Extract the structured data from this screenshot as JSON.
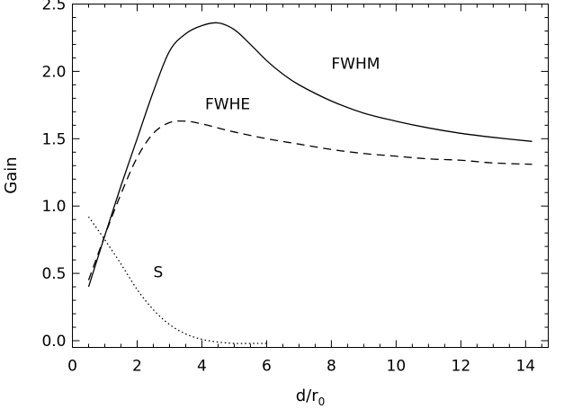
{
  "chart_data": {
    "type": "line",
    "title": "",
    "xlabel": "d/r",
    "xlabel_subscript": "0",
    "ylabel": "Gain",
    "xlim": [
      0,
      14.7
    ],
    "ylim": [
      -0.05,
      2.5
    ],
    "xticks": [
      0,
      2,
      4,
      6,
      8,
      10,
      12,
      14
    ],
    "xtick_labels": [
      "0",
      "2",
      "4",
      "6",
      "8",
      "10",
      "12",
      "14"
    ],
    "yticks": [
      0.0,
      0.5,
      1.0,
      1.5,
      2.0,
      2.5
    ],
    "ytick_labels": [
      "0.0",
      "0.5",
      "1.0",
      "1.5",
      "2.0",
      "2.5"
    ],
    "grid": false,
    "series": [
      {
        "name": "FWHM",
        "linestyle": "solid",
        "color": "#000000",
        "label_at": [
          8.0,
          2.02
        ],
        "x": [
          0.5,
          1.0,
          1.5,
          2.0,
          2.5,
          3.0,
          3.5,
          4.0,
          4.5,
          5.0,
          5.5,
          6.0,
          6.5,
          7.0,
          8.0,
          9.0,
          10.0,
          11.0,
          12.0,
          13.0,
          14.2
        ],
        "y": [
          0.4,
          0.78,
          1.15,
          1.5,
          1.85,
          2.15,
          2.28,
          2.34,
          2.36,
          2.31,
          2.2,
          2.08,
          1.98,
          1.9,
          1.78,
          1.69,
          1.63,
          1.58,
          1.54,
          1.51,
          1.48
        ]
      },
      {
        "name": "FWHE",
        "linestyle": "dashed",
        "color": "#000000",
        "label_at": [
          4.1,
          1.72
        ],
        "x": [
          0.5,
          1.0,
          1.5,
          2.0,
          2.5,
          3.0,
          3.5,
          4.0,
          4.5,
          5.0,
          6.0,
          7.0,
          8.0,
          9.0,
          10.0,
          11.0,
          12.0,
          13.0,
          14.2
        ],
        "y": [
          0.45,
          0.78,
          1.09,
          1.36,
          1.54,
          1.62,
          1.63,
          1.61,
          1.58,
          1.55,
          1.5,
          1.46,
          1.42,
          1.39,
          1.37,
          1.35,
          1.34,
          1.32,
          1.31
        ]
      },
      {
        "name": "S",
        "linestyle": "dotted",
        "color": "#000000",
        "label_at": [
          2.5,
          0.47
        ],
        "x": [
          0.5,
          1.0,
          1.5,
          2.0,
          2.5,
          3.0,
          3.5,
          4.0,
          4.5,
          5.0,
          5.5,
          6.0
        ],
        "y": [
          0.92,
          0.75,
          0.57,
          0.38,
          0.23,
          0.12,
          0.05,
          0.01,
          -0.01,
          -0.02,
          -0.02,
          -0.02
        ]
      }
    ]
  }
}
